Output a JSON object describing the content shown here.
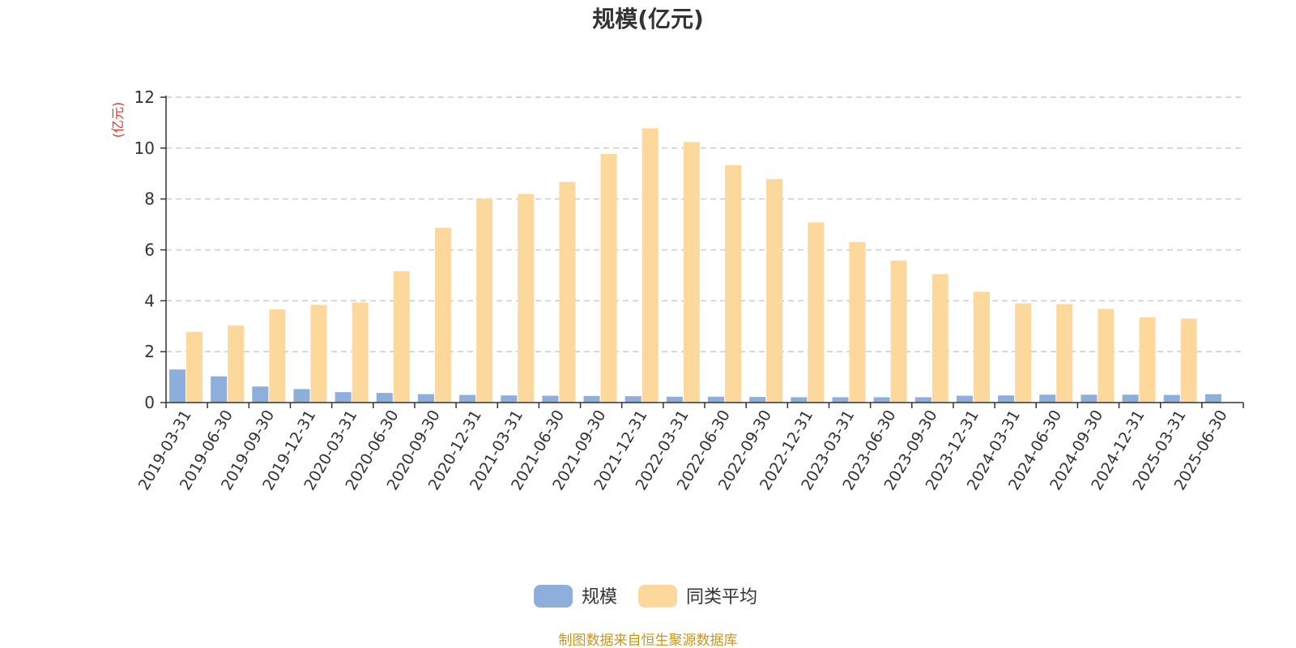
{
  "chart_data": {
    "type": "bar",
    "title": "规模(亿元)",
    "ylabel": "(亿元)",
    "ylim": [
      0,
      12
    ],
    "yticks": [
      0,
      2,
      4,
      6,
      8,
      10,
      12
    ],
    "grid": true,
    "legend_position": "bottom-center",
    "categories": [
      "2019-03-31",
      "2019-06-30",
      "2019-09-30",
      "2019-12-31",
      "2020-03-31",
      "2020-06-30",
      "2020-09-30",
      "2020-12-31",
      "2021-03-31",
      "2021-06-30",
      "2021-09-30",
      "2021-12-31",
      "2022-03-31",
      "2022-06-30",
      "2022-09-30",
      "2022-12-31",
      "2023-03-31",
      "2023-06-30",
      "2023-09-30",
      "2023-12-31",
      "2024-03-31",
      "2024-06-30",
      "2024-09-30",
      "2024-12-31",
      "2025-03-31",
      "2025-06-30"
    ],
    "series": [
      {
        "name": "规模",
        "color": "#8eaedc",
        "values": [
          1.3,
          1.03,
          0.63,
          0.53,
          0.41,
          0.38,
          0.33,
          0.3,
          0.28,
          0.27,
          0.26,
          0.25,
          0.23,
          0.23,
          0.22,
          0.21,
          0.21,
          0.21,
          0.21,
          0.27,
          0.28,
          0.31,
          0.31,
          0.31,
          0.3,
          0.33
        ]
      },
      {
        "name": "同类平均",
        "color": "#fdd89c",
        "values": [
          2.78,
          3.03,
          3.66,
          3.84,
          3.93,
          5.16,
          6.87,
          8.01,
          8.2,
          8.67,
          9.77,
          10.78,
          10.24,
          9.33,
          8.78,
          7.08,
          6.31,
          5.58,
          5.05,
          4.35,
          3.9,
          3.87,
          3.68,
          3.35,
          3.3,
          null
        ]
      }
    ]
  },
  "footer": {
    "source": "制图数据来自恒生聚源数据库"
  }
}
